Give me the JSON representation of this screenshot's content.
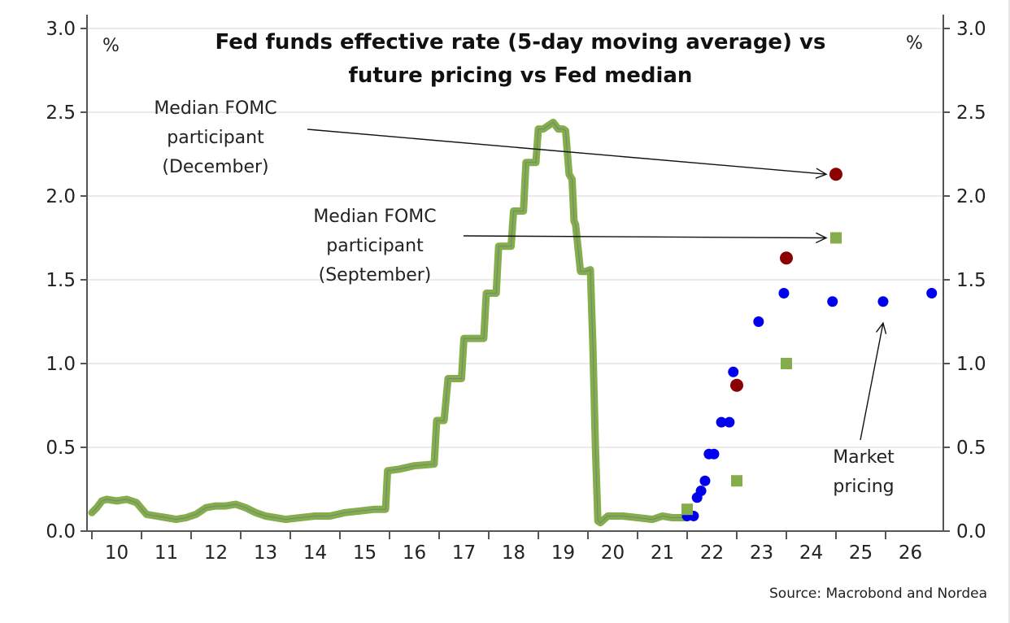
{
  "chart_data": {
    "type": "line",
    "title": "Fed funds effective rate (5-day moving average) vs future pricing vs Fed median",
    "title_lines": [
      "Fed funds effective rate (5-day moving average) vs",
      "future pricing vs Fed median"
    ],
    "xlabel": "",
    "ylabel_left": "%",
    "ylabel_right": "%",
    "xlim": [
      2009.9,
      2027.0
    ],
    "ylim": [
      0.0,
      3.0
    ],
    "grid": true,
    "y_ticks": [
      "0.0",
      "0.5",
      "1.0",
      "1.5",
      "2.0",
      "2.5",
      "3.0"
    ],
    "y_tick_values": [
      0,
      0.5,
      1.0,
      1.5,
      2.0,
      2.5,
      3.0
    ],
    "x_ticks": [
      "10",
      "11",
      "12",
      "13",
      "14",
      "15",
      "16",
      "17",
      "18",
      "19",
      "20",
      "21",
      "22",
      "23",
      "24",
      "25",
      "26"
    ],
    "x_tick_years": [
      2010,
      2011,
      2012,
      2013,
      2014,
      2015,
      2016,
      2017,
      2018,
      2019,
      2020,
      2021,
      2022,
      2023,
      2024,
      2025,
      2026
    ],
    "series": [
      {
        "name": "Fed funds effective rate (5-day moving average)",
        "kind": "line",
        "color": "#86ad4c",
        "x": [
          2010.0,
          2010.1,
          2010.2,
          2010.3,
          2010.5,
          2010.7,
          2010.9,
          2011.1,
          2011.3,
          2011.5,
          2011.7,
          2011.9,
          2012.1,
          2012.3,
          2012.5,
          2012.7,
          2012.9,
          2013.1,
          2013.3,
          2013.5,
          2013.7,
          2013.9,
          2014.2,
          2014.5,
          2014.8,
          2015.1,
          2015.4,
          2015.7,
          2015.92,
          2015.96,
          2016.2,
          2016.5,
          2016.9,
          2016.95,
          2017.1,
          2017.18,
          2017.3,
          2017.45,
          2017.5,
          2017.9,
          2017.95,
          2018.15,
          2018.2,
          2018.45,
          2018.5,
          2018.7,
          2018.75,
          2018.95,
          2019.0,
          2019.1,
          2019.2,
          2019.3,
          2019.4,
          2019.5,
          2019.55,
          2019.62,
          2019.68,
          2019.72,
          2019.75,
          2019.85,
          2019.95,
          2020.05,
          2020.1,
          2020.15,
          2020.2,
          2020.25,
          2020.4,
          2020.7,
          2021.0,
          2021.3,
          2021.5,
          2021.7,
          2021.9,
          2022.0
        ],
        "values": [
          0.11,
          0.14,
          0.18,
          0.19,
          0.18,
          0.19,
          0.17,
          0.1,
          0.09,
          0.08,
          0.07,
          0.08,
          0.1,
          0.14,
          0.15,
          0.15,
          0.16,
          0.14,
          0.11,
          0.09,
          0.08,
          0.07,
          0.08,
          0.09,
          0.09,
          0.11,
          0.12,
          0.13,
          0.13,
          0.36,
          0.37,
          0.39,
          0.4,
          0.66,
          0.66,
          0.91,
          0.91,
          0.91,
          1.15,
          1.15,
          1.42,
          1.42,
          1.7,
          1.7,
          1.91,
          1.91,
          2.2,
          2.2,
          2.4,
          2.4,
          2.42,
          2.44,
          2.4,
          2.4,
          2.39,
          2.13,
          2.1,
          1.85,
          1.83,
          1.55,
          1.55,
          1.56,
          1.1,
          0.5,
          0.06,
          0.05,
          0.09,
          0.09,
          0.08,
          0.07,
          0.09,
          0.08,
          0.08,
          0.08
        ]
      },
      {
        "name": "Market pricing",
        "kind": "scatter",
        "marker": "circle",
        "color": "#0000ee",
        "x": [
          2022.0,
          2022.13,
          2022.2,
          2022.28,
          2022.36,
          2022.44,
          2022.54,
          2022.69,
          2022.85,
          2022.93,
          2023.44,
          2023.95,
          2024.93,
          2025.95,
          2026.93
        ],
        "values": [
          0.09,
          0.09,
          0.2,
          0.24,
          0.3,
          0.46,
          0.46,
          0.65,
          0.65,
          0.95,
          1.25,
          1.42,
          1.37,
          1.37,
          1.42
        ]
      },
      {
        "name": "Median FOMC participant (December)",
        "kind": "scatter",
        "marker": "circle",
        "color": "#8b0000",
        "x": [
          2023.0,
          2024.0,
          2025.0
        ],
        "values": [
          0.87,
          1.63,
          2.13
        ]
      },
      {
        "name": "Median FOMC participant (September)",
        "kind": "scatter",
        "marker": "square",
        "color": "#86ad4c",
        "x": [
          2022.0,
          2023.0,
          2024.0,
          2025.0
        ],
        "values": [
          0.13,
          0.3,
          1.0,
          1.75
        ]
      }
    ],
    "annotations": [
      {
        "lines": [
          "Median FOMC",
          "participant",
          "(December)"
        ],
        "points_to": {
          "x": 2025.0,
          "y": 2.13
        }
      },
      {
        "lines": [
          "Median FOMC",
          "participant",
          "(September)"
        ],
        "points_to": {
          "x": 2025.0,
          "y": 1.75
        }
      },
      {
        "lines": [
          "Market",
          "pricing"
        ],
        "points_to": {
          "x": 2025.95,
          "y": 1.3
        }
      }
    ],
    "source": "Source: Macrobond and Nordea"
  }
}
